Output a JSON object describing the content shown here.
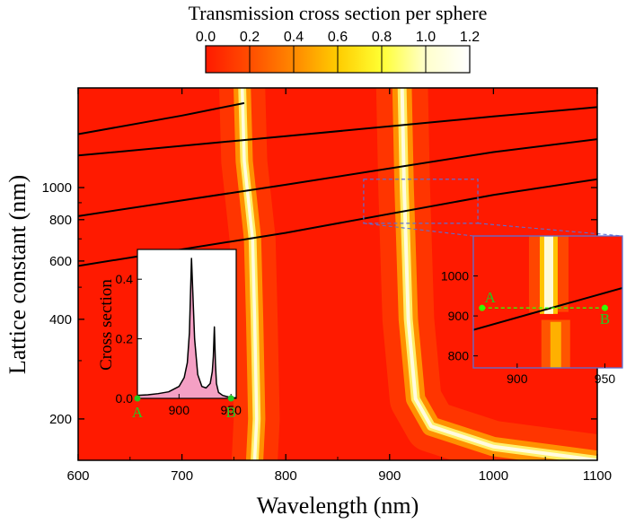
{
  "chart_data": [
    {
      "type": "heatmap",
      "title": "Transmission cross section per sphere",
      "xlabel": "Wavelength (nm)",
      "ylabel": "Lattice constant (nm)",
      "xlim": [
        600,
        1100
      ],
      "ylim": [
        150,
        2000
      ],
      "yscale": "log",
      "x_ticks": [
        "600",
        "700",
        "800",
        "900",
        "1000",
        "1100"
      ],
      "y_ticks": [
        "200",
        "400",
        "600",
        "800",
        "1000"
      ],
      "colorbar": {
        "range": [
          0.0,
          1.2
        ],
        "ticks": [
          "0.0",
          "0.2",
          "0.4",
          "0.6",
          "0.8",
          "1.0",
          "1.2"
        ],
        "colors": [
          "#ff1a00",
          "#ff4d00",
          "#ff8800",
          "#ffcc00",
          "#ffff33",
          "#ffffcc",
          "#ffffff"
        ]
      },
      "resonances": [
        {
          "wavelength_far": 770,
          "peak_value": 1.1
        },
        {
          "wavelength_far": 918,
          "peak_value": 1.2
        }
      ],
      "rayleigh_lines": [
        {
          "points": [
            [
              600,
              580
            ],
            [
              800,
              730
            ],
            [
              1000,
              950
            ],
            [
              1100,
              1060
            ]
          ]
        },
        {
          "points": [
            [
              600,
              820
            ],
            [
              800,
              1020
            ],
            [
              1000,
              1280
            ],
            [
              1100,
              1400
            ]
          ]
        },
        {
          "points": [
            [
              600,
              1250
            ],
            [
              800,
              1430
            ],
            [
              1000,
              1640
            ],
            [
              1100,
              1750
            ]
          ]
        },
        {
          "points": [
            [
              600,
              1450
            ],
            [
              700,
              1650
            ],
            [
              760,
              1800
            ]
          ]
        }
      ],
      "zoom_box": {
        "x_range": [
          875,
          985
        ],
        "y_range": [
          780,
          1060
        ],
        "color": "#5b6fd6"
      }
    },
    {
      "type": "area",
      "ylabel": "Cross section",
      "xlim": [
        860,
        955
      ],
      "ylim": [
        0,
        0.5
      ],
      "x_ticks": [
        "900",
        "950"
      ],
      "y_ticks": [
        "0.0",
        "0.2",
        "0.4"
      ],
      "x": [
        860,
        870,
        880,
        890,
        900,
        905,
        908,
        910,
        912,
        915,
        918,
        922,
        926,
        930,
        932,
        933,
        934,
        935,
        936,
        938,
        942,
        946,
        950,
        955
      ],
      "y": [
        0.01,
        0.012,
        0.016,
        0.022,
        0.04,
        0.07,
        0.12,
        0.22,
        0.47,
        0.2,
        0.08,
        0.04,
        0.035,
        0.05,
        0.09,
        0.14,
        0.24,
        0.12,
        0.05,
        0.02,
        0.01,
        0.006,
        0.003,
        0.002
      ],
      "fill": "#f4a0c4",
      "markers": [
        {
          "label": "A",
          "x": 860,
          "y": 0
        },
        {
          "label": "B",
          "x": 950,
          "y": 0
        }
      ]
    },
    {
      "type": "heatmap",
      "xlim": [
        875,
        960
      ],
      "ylim": [
        770,
        1100
      ],
      "x_ticks": [
        "900",
        "950"
      ],
      "y_ticks": [
        "800",
        "900",
        "1000"
      ],
      "line": {
        "points": [
          [
            875,
            865
          ],
          [
            960,
            970
          ]
        ]
      },
      "cut": {
        "from": {
          "label": "A",
          "x": 880,
          "y": 920
        },
        "to": {
          "label": "B",
          "x": 950,
          "y": 920
        },
        "color": "#33ff00"
      }
    }
  ]
}
